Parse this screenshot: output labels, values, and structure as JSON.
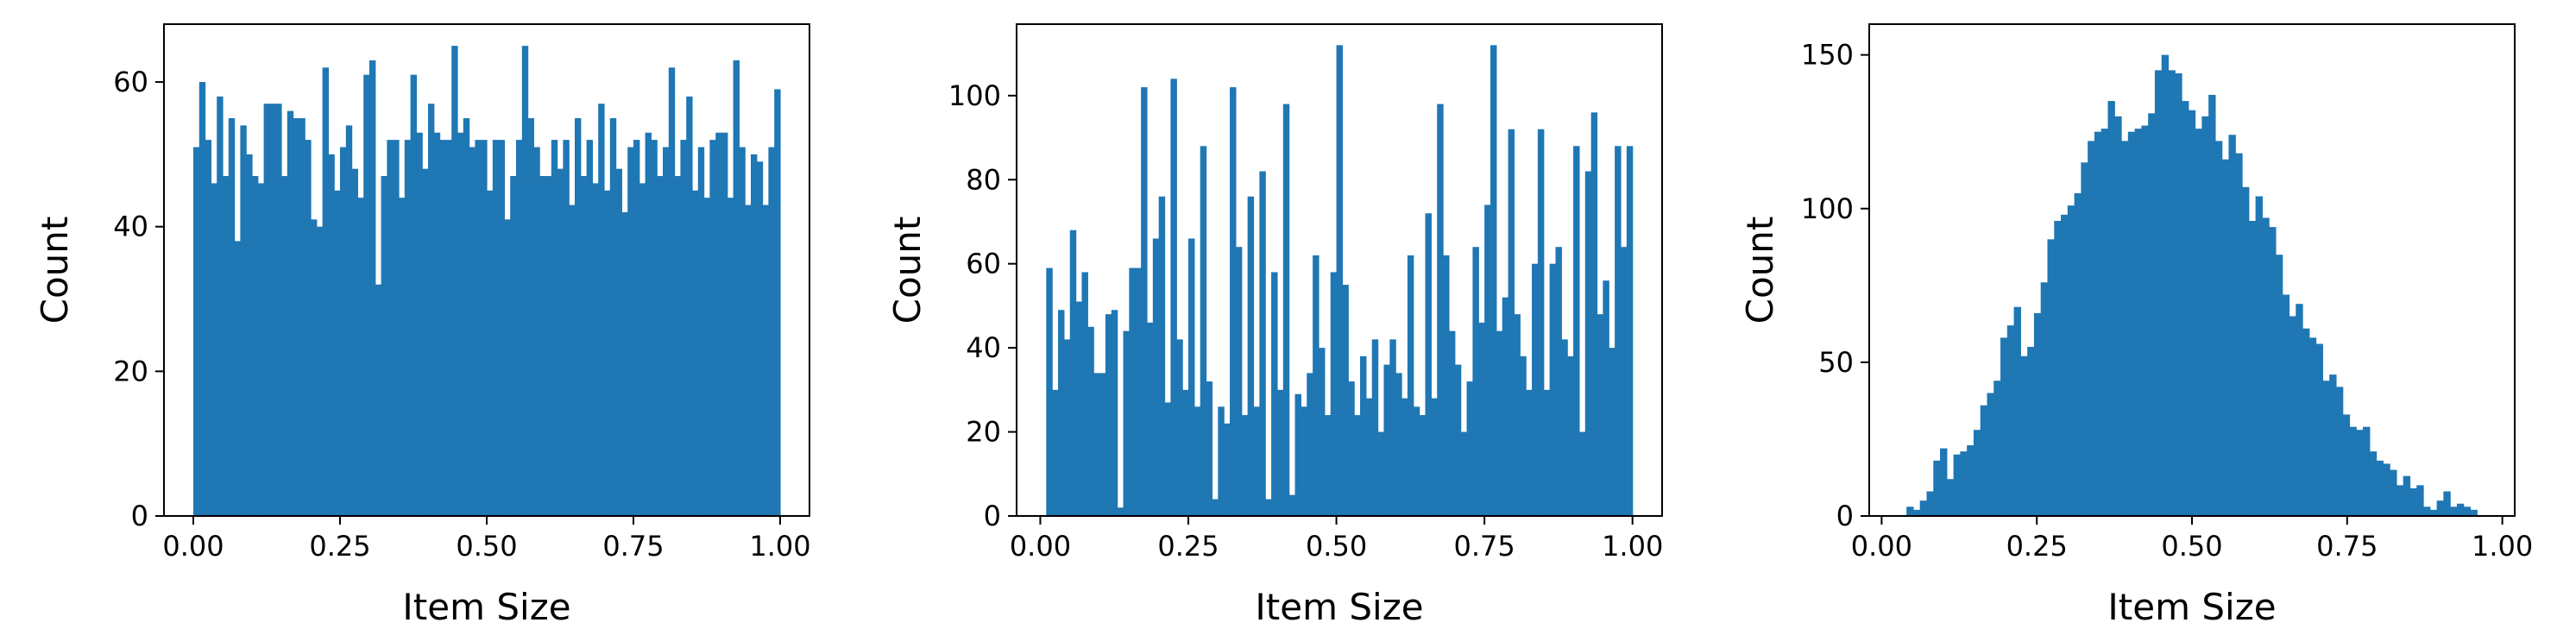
{
  "chart_data": [
    {
      "type": "bar",
      "xlabel": "Item Size",
      "ylabel": "Count",
      "xlim": [
        -0.05,
        1.05
      ],
      "ylim": [
        0,
        68
      ],
      "xticks": [
        0.0,
        0.25,
        0.5,
        0.75,
        1.0
      ],
      "xtick_labels": [
        "0.00",
        "0.25",
        "0.50",
        "0.75",
        "1.00"
      ],
      "yticks": [
        0,
        20,
        40,
        60
      ],
      "ytick_labels": [
        "0",
        "20",
        "40",
        "60"
      ],
      "bin_start": 0.0,
      "bin_end": 1.0,
      "color": "#1f77b4",
      "values": [
        51,
        60,
        52,
        46,
        58,
        47,
        55,
        38,
        54,
        50,
        47,
        46,
        57,
        57,
        57,
        47,
        56,
        55,
        55,
        52,
        41,
        40,
        62,
        50,
        45,
        51,
        54,
        48,
        44,
        61,
        63,
        32,
        47,
        52,
        52,
        44,
        52,
        61,
        53,
        48,
        57,
        53,
        52,
        52,
        65,
        53,
        55,
        51,
        52,
        52,
        45,
        52,
        52,
        41,
        47,
        52,
        65,
        55,
        51,
        47,
        47,
        52,
        48,
        52,
        43,
        55,
        47,
        52,
        46,
        57,
        45,
        55,
        48,
        42,
        51,
        52,
        46,
        53,
        52,
        47,
        51,
        62,
        47,
        52,
        58,
        45,
        51,
        44,
        52,
        53,
        53,
        44,
        63,
        51,
        43,
        50,
        49,
        43,
        51,
        59
      ]
    },
    {
      "type": "bar",
      "xlabel": "Item Size",
      "ylabel": "Count",
      "xlim": [
        -0.04,
        1.05
      ],
      "ylim": [
        0,
        117
      ],
      "xticks": [
        0.0,
        0.25,
        0.5,
        0.75,
        1.0
      ],
      "xtick_labels": [
        "0.00",
        "0.25",
        "0.50",
        "0.75",
        "1.00"
      ],
      "yticks": [
        0,
        20,
        40,
        60,
        80,
        100
      ],
      "ytick_labels": [
        "0",
        "20",
        "40",
        "60",
        "80",
        "100"
      ],
      "bin_start": 0.01,
      "bin_end": 1.0,
      "color": "#1f77b4",
      "values": [
        59,
        30,
        49,
        42,
        68,
        51,
        58,
        45,
        34,
        34,
        48,
        49,
        2,
        44,
        59,
        59,
        102,
        46,
        66,
        76,
        27,
        104,
        42,
        30,
        66,
        26,
        88,
        32,
        4,
        26,
        22,
        102,
        64,
        24,
        76,
        26,
        82,
        4,
        58,
        30,
        98,
        5,
        29,
        26,
        34,
        62,
        40,
        24,
        58,
        112,
        55,
        32,
        24,
        38,
        28,
        42,
        20,
        36,
        42,
        34,
        28,
        62,
        26,
        24,
        72,
        28,
        98,
        62,
        44,
        36,
        20,
        32,
        64,
        46,
        74,
        112,
        44,
        52,
        92,
        48,
        38,
        30,
        60,
        92,
        30,
        60,
        64,
        42,
        38,
        88,
        20,
        82,
        96,
        48,
        56,
        40,
        88,
        64,
        88
      ]
    },
    {
      "type": "bar",
      "xlabel": "Item Size",
      "ylabel": "Count",
      "xlim": [
        -0.02,
        1.02
      ],
      "ylim": [
        0,
        160
      ],
      "xticks": [
        0.0,
        0.25,
        0.5,
        0.75,
        1.0
      ],
      "xtick_labels": [
        "0.00",
        "0.25",
        "0.50",
        "0.75",
        "1.00"
      ],
      "yticks": [
        0,
        50,
        100,
        150
      ],
      "ytick_labels": [
        "0",
        "50",
        "100",
        "150"
      ],
      "bin_start": 0.04,
      "bin_end": 0.97,
      "color": "#1f77b4",
      "values": [
        3,
        2,
        5,
        8,
        18,
        22,
        12,
        20,
        21,
        23,
        28,
        36,
        40,
        44,
        58,
        62,
        68,
        52,
        55,
        66,
        76,
        90,
        96,
        98,
        101,
        105,
        115,
        122,
        125,
        126,
        135,
        130,
        122,
        125,
        126,
        127,
        131,
        145,
        150,
        145,
        144,
        135,
        132,
        126,
        130,
        137,
        122,
        116,
        124,
        118,
        107,
        96,
        104,
        97,
        94,
        85,
        72,
        65,
        69,
        61,
        58,
        56,
        44,
        46,
        42,
        33,
        29,
        28,
        29,
        21,
        18,
        17,
        15,
        10,
        13,
        9,
        10,
        3,
        2,
        5,
        8,
        3,
        4,
        3,
        2,
        0
      ]
    }
  ]
}
